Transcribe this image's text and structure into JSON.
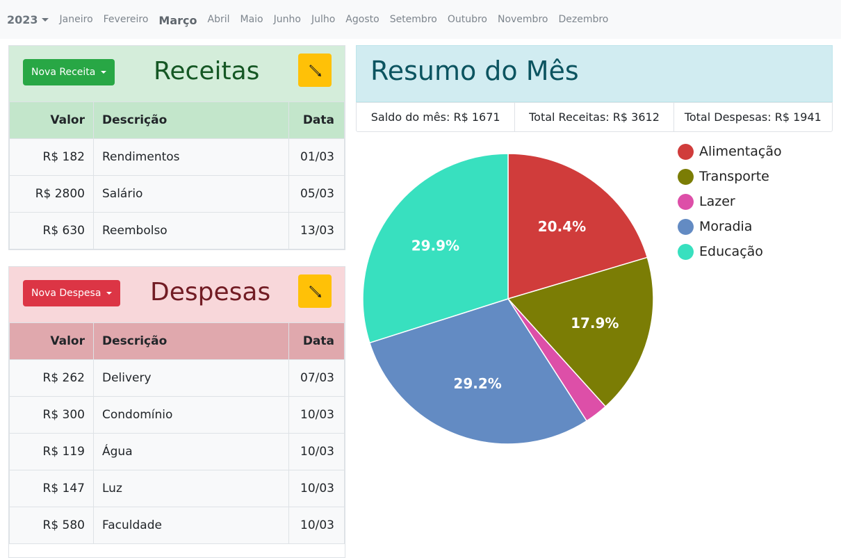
{
  "nav": {
    "year": "2023",
    "months": [
      "Janeiro",
      "Fevereiro",
      "Março",
      "Abril",
      "Maio",
      "Junho",
      "Julho",
      "Agosto",
      "Setembro",
      "Outubro",
      "Novembro",
      "Dezembro"
    ],
    "active_month": "Março"
  },
  "receitas": {
    "title": "Receitas",
    "new_button": "Nova Receita",
    "columns": [
      "Valor",
      "Descrição",
      "Data"
    ],
    "rows": [
      {
        "valor": "R$ 182",
        "descricao": "Rendimentos",
        "data": "01/03"
      },
      {
        "valor": "R$ 2800",
        "descricao": "Salário",
        "data": "05/03"
      },
      {
        "valor": "R$ 630",
        "descricao": "Reembolso",
        "data": "13/03"
      }
    ]
  },
  "despesas": {
    "title": "Despesas",
    "new_button": "Nova Despesa",
    "columns": [
      "Valor",
      "Descrição",
      "Data"
    ],
    "rows": [
      {
        "valor": "R$ 262",
        "descricao": "Delivery",
        "data": "07/03"
      },
      {
        "valor": "R$ 300",
        "descricao": "Condomínio",
        "data": "10/03"
      },
      {
        "valor": "R$ 119",
        "descricao": "Água",
        "data": "10/03"
      },
      {
        "valor": "R$ 147",
        "descricao": "Luz",
        "data": "10/03"
      },
      {
        "valor": "R$ 580",
        "descricao": "Faculdade",
        "data": "10/03"
      }
    ]
  },
  "resumo": {
    "title": "Resumo do Mês",
    "saldo": "Saldo do mês: R$ 1671",
    "total_receitas": "Total Receitas: R$ 3612",
    "total_despesas": "Total Despesas: R$ 1941"
  },
  "icons": {
    "edit": "pencil-icon",
    "dropdown": "caret-down-icon"
  },
  "colors": {
    "success": "#28a745",
    "danger": "#dc3545",
    "warning": "#ffc107",
    "info_bg": "#d1ecf1"
  },
  "chart_data": {
    "type": "pie",
    "categories": [
      "Alimentação",
      "Transporte",
      "Lazer",
      "Moradia",
      "Educação"
    ],
    "values": [
      20.4,
      17.9,
      2.6,
      29.2,
      29.9
    ],
    "labels": [
      "20.4%",
      "17.9%",
      "",
      "29.2%",
      "29.9%"
    ],
    "colors": [
      "#d03c3b",
      "#7b7d05",
      "#dd4fa8",
      "#638bc3",
      "#38e0bf"
    ],
    "legend": "right"
  }
}
